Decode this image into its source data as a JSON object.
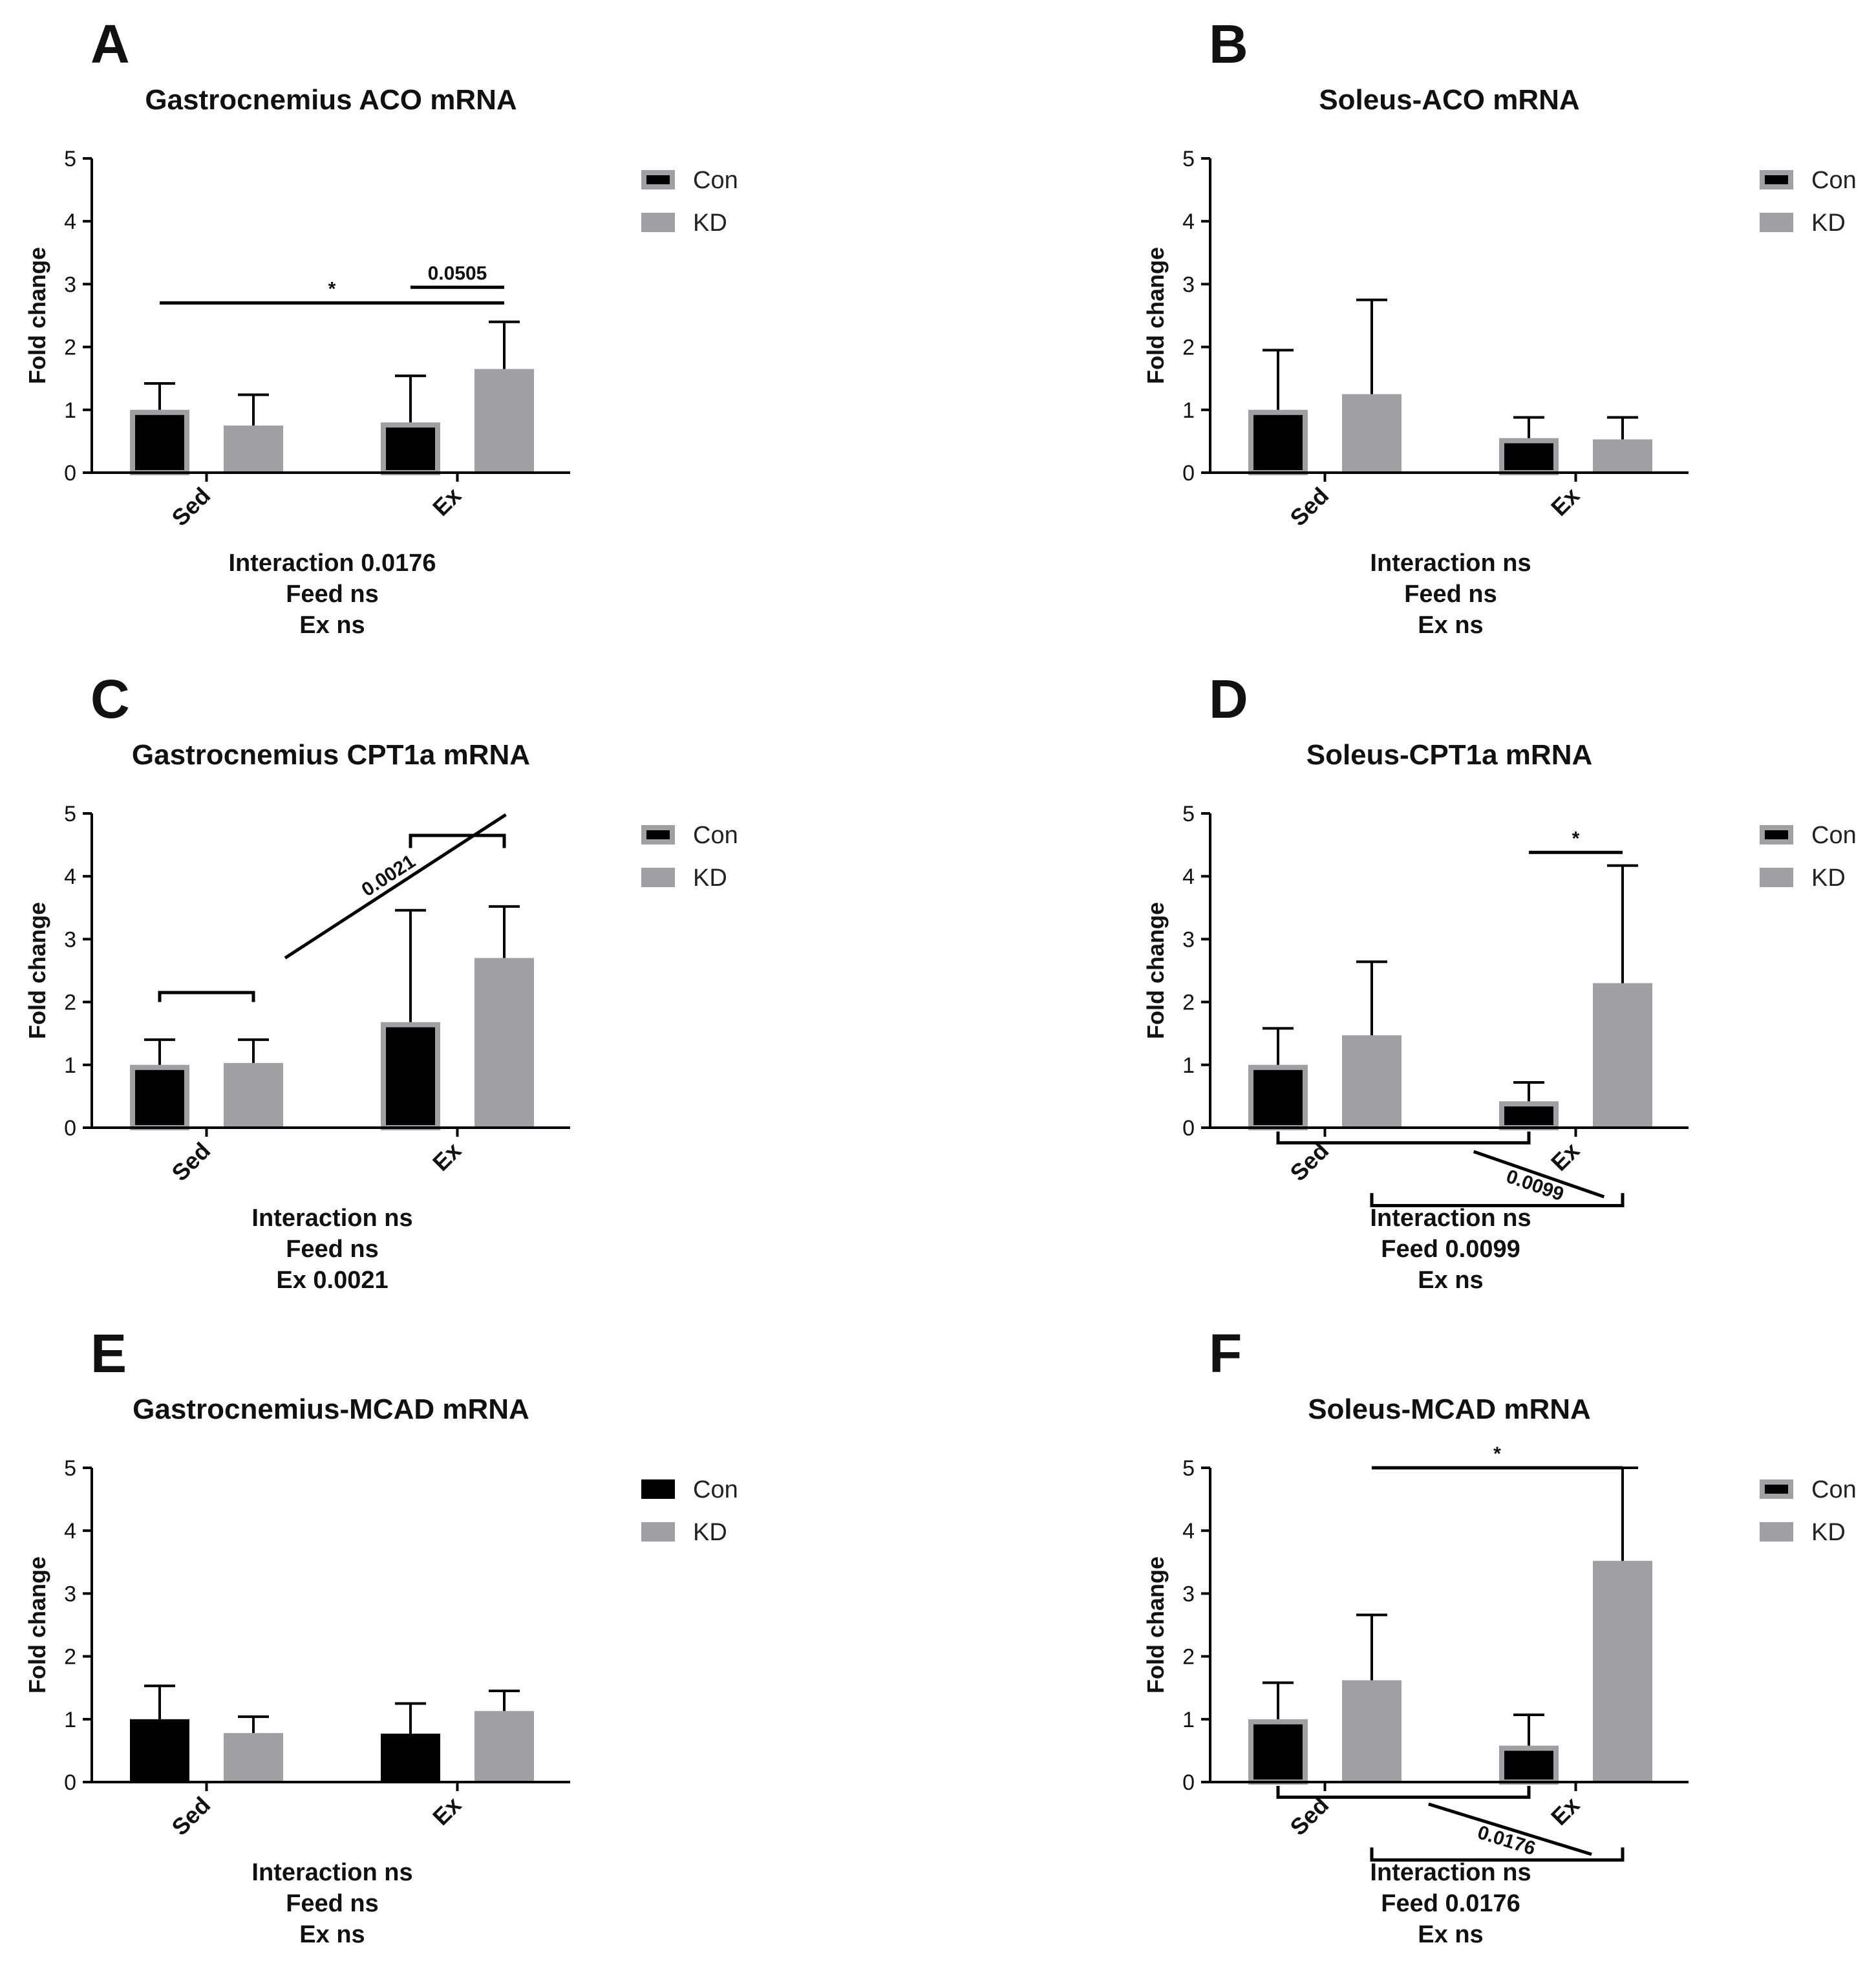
{
  "figure": {
    "y_axis_label": "Fold change",
    "legend": {
      "con": "Con",
      "kd": "KD"
    },
    "colors": {
      "con": "#000000",
      "kd": "#a0a0a4",
      "con_outline": "#a0a0a4",
      "axis": "#000000"
    }
  },
  "chart_data": [
    {
      "panel": "A",
      "type": "bar",
      "title": "Gastrocnemius ACO mRNA",
      "ylabel": "Fold change",
      "ylim": [
        0,
        5
      ],
      "yticks": [
        "0",
        "1",
        "2",
        "3",
        "4",
        "5"
      ],
      "categories": [
        "Sed",
        "Ex"
      ],
      "con_outlined": true,
      "series": [
        {
          "name": "Con",
          "values": [
            1.0,
            0.8
          ],
          "errors": [
            0.42,
            0.74
          ]
        },
        {
          "name": "KD",
          "values": [
            0.75,
            1.65
          ],
          "errors": [
            0.49,
            0.75
          ]
        }
      ],
      "stats": [
        "Interaction 0.0176",
        "Feed ns",
        "Ex ns"
      ],
      "annotations": [
        {
          "type": "line",
          "from": [
            0,
            0
          ],
          "to": [
            1,
            1
          ],
          "y": 2.7,
          "text": "*"
        },
        {
          "type": "line",
          "from": [
            1,
            0
          ],
          "to": [
            1,
            1
          ],
          "y": 2.95,
          "text": "0.0505"
        }
      ]
    },
    {
      "panel": "B",
      "type": "bar",
      "title": "Soleus-ACO mRNA",
      "ylabel": "Fold change",
      "ylim": [
        0,
        5
      ],
      "yticks": [
        "0",
        "1",
        "2",
        "3",
        "4",
        "5"
      ],
      "categories": [
        "Sed",
        "Ex"
      ],
      "con_outlined": true,
      "series": [
        {
          "name": "Con",
          "values": [
            1.0,
            0.55
          ],
          "errors": [
            0.95,
            0.33
          ]
        },
        {
          "name": "KD",
          "values": [
            1.25,
            0.53
          ],
          "errors": [
            1.5,
            0.35
          ]
        }
      ],
      "stats": [
        "Interaction ns",
        "Feed ns",
        "Ex ns"
      ],
      "annotations": []
    },
    {
      "panel": "C",
      "type": "bar",
      "title": "Gastrocnemius CPT1a mRNA",
      "ylabel": "Fold change",
      "ylim": [
        0,
        5
      ],
      "yticks": [
        "0",
        "1",
        "2",
        "3",
        "4",
        "5"
      ],
      "categories": [
        "Sed",
        "Ex"
      ],
      "con_outlined": true,
      "series": [
        {
          "name": "Con",
          "values": [
            1.0,
            1.68
          ],
          "errors": [
            0.4,
            1.78
          ]
        },
        {
          "name": "KD",
          "values": [
            1.03,
            2.7
          ],
          "errors": [
            0.37,
            0.82
          ]
        }
      ],
      "stats": [
        "Interaction ns",
        "Feed ns",
        "Ex 0.0021"
      ],
      "annotations": [
        {
          "type": "bracket",
          "from": [
            0,
            0
          ],
          "to": [
            0,
            1
          ],
          "y": 2.15,
          "tick": -0.15
        },
        {
          "type": "bracket",
          "from": [
            1,
            0
          ],
          "to": [
            1,
            1
          ],
          "y": 4.65,
          "tick": -0.2
        },
        {
          "type": "diagonal",
          "from": [
            0.5,
            2.7
          ],
          "to": [
            1.38,
            4.98
          ],
          "text": "0.0021"
        }
      ]
    },
    {
      "panel": "D",
      "type": "bar",
      "title": "Soleus-CPT1a mRNA",
      "ylabel": "Fold change",
      "ylim": [
        0,
        5
      ],
      "yticks": [
        "0",
        "1",
        "2",
        "3",
        "4",
        "5"
      ],
      "categories": [
        "Sed",
        "Ex"
      ],
      "con_outlined": true,
      "series": [
        {
          "name": "Con",
          "values": [
            1.0,
            0.42
          ],
          "errors": [
            0.58,
            0.3
          ]
        },
        {
          "name": "KD",
          "values": [
            1.47,
            2.3
          ],
          "errors": [
            1.17,
            1.87
          ]
        }
      ],
      "stats": [
        "Interaction ns",
        "Feed 0.0099",
        "Ex ns"
      ],
      "annotations": [
        {
          "type": "line",
          "from": [
            1,
            0
          ],
          "to": [
            1,
            1
          ],
          "y": 4.38,
          "text": "*"
        },
        {
          "type": "bracket",
          "from": [
            0,
            0
          ],
          "to": [
            1,
            0
          ],
          "y": -0.24,
          "tick": 0.18
        },
        {
          "type": "bracket",
          "from": [
            0,
            1
          ],
          "to": [
            1,
            1
          ],
          "y": -1.24,
          "tick": 0.2
        },
        {
          "type": "diagonal",
          "from": [
            0.78,
            -0.38
          ],
          "to": [
            1.3,
            -1.1
          ],
          "text": "0.0099"
        }
      ]
    },
    {
      "panel": "E",
      "type": "bar",
      "title": "Gastrocnemius-MCAD mRNA",
      "ylabel": "Fold change",
      "ylim": [
        0,
        5
      ],
      "yticks": [
        "0",
        "1",
        "2",
        "3",
        "4",
        "5"
      ],
      "categories": [
        "Sed",
        "Ex"
      ],
      "con_outlined": false,
      "series": [
        {
          "name": "Con",
          "values": [
            1.0,
            0.77
          ],
          "errors": [
            0.53,
            0.48
          ]
        },
        {
          "name": "KD",
          "values": [
            0.78,
            1.13
          ],
          "errors": [
            0.26,
            0.32
          ]
        }
      ],
      "stats": [
        "Interaction ns",
        "Feed ns",
        "Ex ns"
      ],
      "annotations": []
    },
    {
      "panel": "F",
      "type": "bar",
      "title": "Soleus-MCAD mRNA",
      "ylabel": "Fold change",
      "ylim": [
        0,
        5
      ],
      "yticks": [
        "0",
        "1",
        "2",
        "3",
        "4",
        "5"
      ],
      "categories": [
        "Sed",
        "Ex"
      ],
      "con_outlined": true,
      "series": [
        {
          "name": "Con",
          "values": [
            1.0,
            0.58
          ],
          "errors": [
            0.58,
            0.49
          ]
        },
        {
          "name": "KD",
          "values": [
            1.62,
            3.52
          ],
          "errors": [
            1.04,
            1.48
          ]
        }
      ],
      "stats": [
        "Interaction ns",
        "Feed 0.0176",
        "Ex ns"
      ],
      "annotations": [
        {
          "type": "line",
          "from": [
            0,
            1
          ],
          "to": [
            1,
            1
          ],
          "y": 5.0,
          "text": "*"
        },
        {
          "type": "bracket",
          "from": [
            0,
            0
          ],
          "to": [
            1,
            0
          ],
          "y": -0.24,
          "tick": 0.18
        },
        {
          "type": "bracket",
          "from": [
            0,
            1
          ],
          "to": [
            1,
            1
          ],
          "y": -1.24,
          "tick": 0.2
        },
        {
          "type": "diagonal",
          "from": [
            0.6,
            -0.35
          ],
          "to": [
            1.25,
            -1.15
          ],
          "text": "0.0176"
        }
      ]
    }
  ]
}
